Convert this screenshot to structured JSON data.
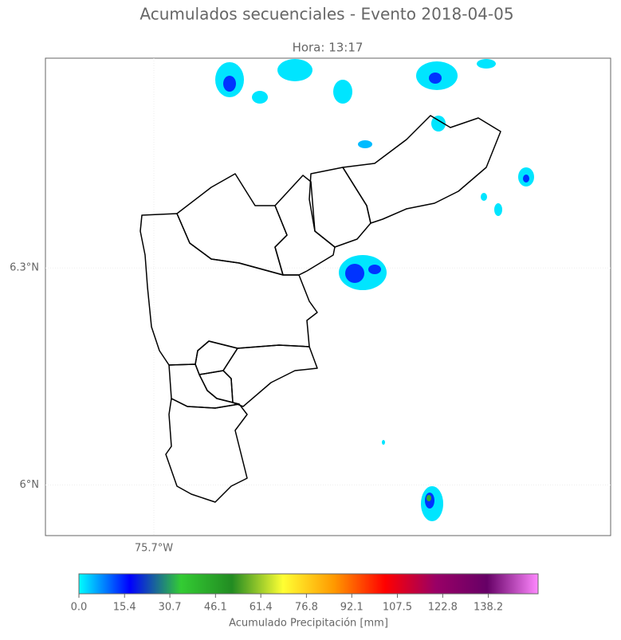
{
  "chart_data": {
    "type": "map",
    "title": "Acumulados secuenciales - Evento 2018-04-05",
    "subtitle": "Hora: 13:17",
    "xlim": [
      -75.85,
      -75.068
    ],
    "ylim": [
      5.93,
      6.59
    ],
    "xticks": [
      {
        "value": -75.7,
        "label": "75.7°W"
      }
    ],
    "yticks": [
      {
        "value": 6.0,
        "label": "6°N"
      },
      {
        "value": 6.3,
        "label": "6.3°N"
      }
    ],
    "grid": true,
    "colorbar": {
      "label": "Acumulado Precipitación [mm]",
      "clim": [
        0,
        155
      ],
      "ticks": [
        {
          "value": 0,
          "label": "0.0"
        },
        15.4,
        30.7,
        46.1,
        61.4,
        76.8,
        92.1,
        107.5,
        122.8,
        138.2
      ],
      "colormap": [
        "#00ffff",
        "#0000ff",
        "#33cc33",
        "#228b22",
        "#ffff33",
        "#ff9900",
        "#ff0000",
        "#990066",
        "#660066",
        "#ff88ff"
      ]
    }
  }
}
